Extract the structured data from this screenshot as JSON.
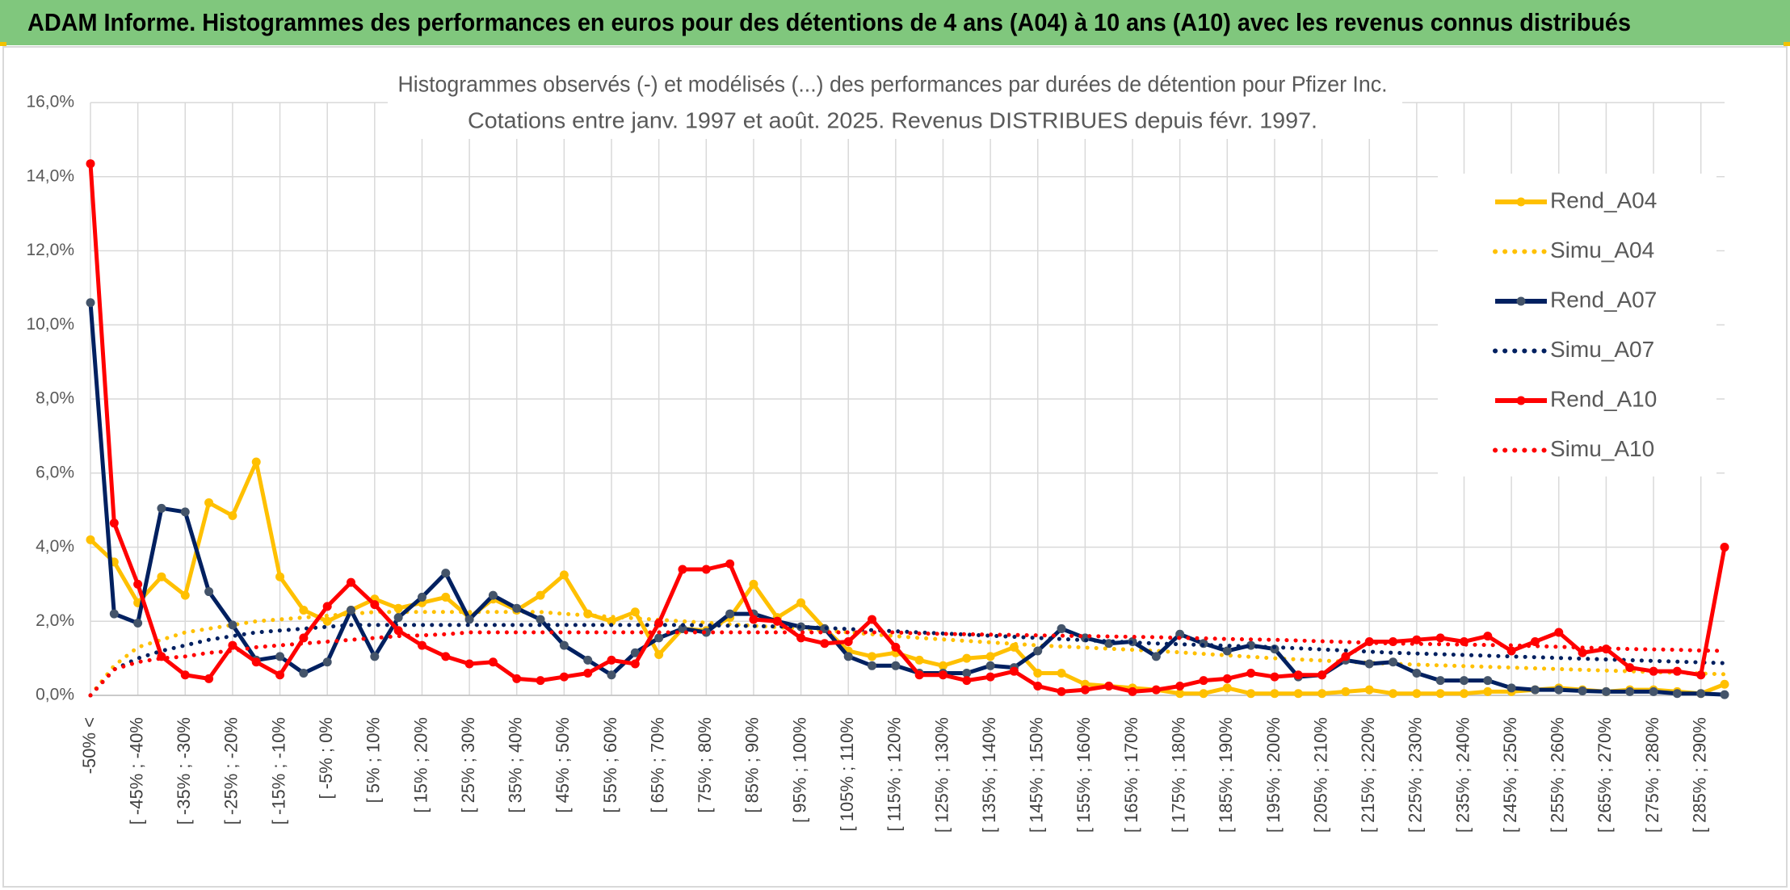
{
  "header": {
    "title": "ADAM Informe. Histogrammes des performances en euros pour des détentions de 4 ans (A04) à 10 ans (A10) avec les revenus connus distribués"
  },
  "chart_data": {
    "type": "line",
    "title": "Histogrammes observés (-) et modélisés (...) des performances par durées de détention pour Pfizer Inc.",
    "subtitle": "Cotations entre janv. 1997 et août. 2025. Revenus DISTRIBUES depuis févr. 1997.",
    "categories": [
      "-50% <",
      null,
      "[ -45% ; -40%",
      null,
      "[ -35% ; -30%",
      null,
      "[ -25% ; -20%",
      null,
      "[ -15% ; -10%",
      null,
      "[ -5% ; 0%",
      null,
      "[ 5% ; 10%",
      null,
      "[ 15% ; 20%",
      null,
      "[ 25% ; 30%",
      null,
      "[ 35% ; 40%",
      null,
      "[ 45% ; 50%",
      null,
      "[ 55% ; 60%",
      null,
      "[ 65% ; 70%",
      null,
      "[ 75% ; 80%",
      null,
      "[ 85% ; 90%",
      null,
      "[ 95% ; 100%",
      null,
      "[ 105% ; 110%",
      null,
      "[ 115% ; 120%",
      null,
      "[ 125% ; 130%",
      null,
      "[ 135% ; 140%",
      null,
      "[ 145% ; 150%",
      null,
      "[ 155% ; 160%",
      null,
      "[ 165% ; 170%",
      null,
      "[ 175% ; 180%",
      null,
      "[ 185% ; 190%",
      null,
      "[ 195% ; 200%",
      null,
      "[ 205% ; 210%",
      null,
      "[ 215% ; 220%",
      null,
      "[ 225% ; 230%",
      null,
      "[ 235% ; 240%",
      null,
      "[ 245% ; 250%",
      null,
      "[ 255% ; 260%",
      null,
      "[ 265% ; 270%",
      null,
      "[ 275% ; 280%",
      null,
      "[ 285% ; 290%",
      null
    ],
    "ylim": [
      0,
      16
    ],
    "yticks": [
      {
        "value": 0,
        "label": "0,0%"
      },
      {
        "value": 2,
        "label": "2,0%"
      },
      {
        "value": 4,
        "label": "4,0%"
      },
      {
        "value": 6,
        "label": "6,0%"
      },
      {
        "value": 8,
        "label": "8,0%"
      },
      {
        "value": 10,
        "label": "10,0%"
      },
      {
        "value": 12,
        "label": "12,0%"
      },
      {
        "value": 14,
        "label": "14,0%"
      },
      {
        "value": 16,
        "label": "16,0%"
      }
    ],
    "grid": true,
    "legend": "right",
    "series": [
      {
        "name": "Rend_A04",
        "color": "#ffc000",
        "style": "solid",
        "markers": true,
        "values": [
          4.2,
          3.6,
          2.5,
          3.2,
          2.7,
          5.2,
          4.85,
          6.3,
          3.2,
          2.3,
          2.0,
          2.3,
          2.6,
          2.35,
          2.5,
          2.65,
          2.1,
          2.6,
          2.3,
          2.7,
          3.25,
          2.2,
          2.0,
          2.25,
          1.1,
          1.8,
          1.75,
          2.1,
          3.0,
          2.1,
          2.5,
          1.8,
          1.2,
          1.05,
          1.15,
          0.95,
          0.8,
          1.0,
          1.05,
          1.3,
          0.6,
          0.6,
          0.3,
          0.25,
          0.2,
          0.15,
          0.05,
          0.05,
          0.2,
          0.05,
          0.05,
          0.05,
          0.05,
          0.1,
          0.15,
          0.05,
          0.05,
          0.05,
          0.05,
          0.1,
          0.1,
          0.15,
          0.2,
          0.15,
          0.1,
          0.15,
          0.15,
          0.1,
          0.05,
          0.3
        ]
      },
      {
        "name": "Simu_A04",
        "color": "#ffc000",
        "style": "dotted",
        "markers": false,
        "values": [
          0,
          0.8,
          1.3,
          1.5,
          1.7,
          1.8,
          1.9,
          2.0,
          2.05,
          2.1,
          2.15,
          2.2,
          2.25,
          2.25,
          2.25,
          2.25,
          2.25,
          2.25,
          2.25,
          2.25,
          2.2,
          2.16,
          2.12,
          2.08,
          2.04,
          2.0,
          1.96,
          1.92,
          1.88,
          1.84,
          1.8,
          1.75,
          1.7,
          1.65,
          1.6,
          1.55,
          1.51,
          1.47,
          1.43,
          1.39,
          1.35,
          1.32,
          1.29,
          1.26,
          1.23,
          1.2,
          1.16,
          1.12,
          1.08,
          1.04,
          1.0,
          0.97,
          0.94,
          0.91,
          0.88,
          0.85,
          0.83,
          0.81,
          0.79,
          0.77,
          0.75,
          0.73,
          0.71,
          0.69,
          0.67,
          0.65,
          0.63,
          0.61,
          0.59,
          0.57
        ]
      },
      {
        "name": "Rend_A07",
        "color": "#002060",
        "marker_color": "#44546a",
        "style": "solid",
        "markers": true,
        "values": [
          10.6,
          2.2,
          1.95,
          5.05,
          4.95,
          2.8,
          1.9,
          0.95,
          1.05,
          0.6,
          0.9,
          2.3,
          1.05,
          2.1,
          2.65,
          3.3,
          2.05,
          2.7,
          2.35,
          2.05,
          1.35,
          0.95,
          0.55,
          1.15,
          1.55,
          1.8,
          1.7,
          2.2,
          2.2,
          2.0,
          1.85,
          1.8,
          1.05,
          0.8,
          0.8,
          0.6,
          0.6,
          0.6,
          0.8,
          0.75,
          1.2,
          1.8,
          1.55,
          1.4,
          1.45,
          1.05,
          1.65,
          1.4,
          1.2,
          1.35,
          1.25,
          0.5,
          0.55,
          0.95,
          0.85,
          0.9,
          0.6,
          0.4,
          0.4,
          0.4,
          0.2,
          0.15,
          0.15,
          0.12,
          0.1,
          0.1,
          0.1,
          0.05,
          0.05,
          0.02
        ]
      },
      {
        "name": "Simu_A07",
        "color": "#002060",
        "style": "dotted",
        "markers": false,
        "values": [
          0,
          0.7,
          1.0,
          1.2,
          1.35,
          1.5,
          1.6,
          1.7,
          1.75,
          1.8,
          1.85,
          1.9,
          1.9,
          1.9,
          1.9,
          1.9,
          1.9,
          1.9,
          1.9,
          1.9,
          1.9,
          1.9,
          1.9,
          1.9,
          1.9,
          1.9,
          1.89,
          1.88,
          1.87,
          1.86,
          1.85,
          1.82,
          1.79,
          1.76,
          1.73,
          1.7,
          1.67,
          1.64,
          1.61,
          1.58,
          1.55,
          1.52,
          1.49,
          1.46,
          1.43,
          1.4,
          1.38,
          1.36,
          1.34,
          1.32,
          1.3,
          1.27,
          1.24,
          1.21,
          1.18,
          1.15,
          1.13,
          1.11,
          1.09,
          1.07,
          1.05,
          1.03,
          1.01,
          0.99,
          0.97,
          0.95,
          0.93,
          0.91,
          0.89,
          0.87
        ]
      },
      {
        "name": "Rend_A10",
        "color": "#ff0000",
        "style": "solid",
        "markers": true,
        "values": [
          14.35,
          4.65,
          3.0,
          1.05,
          0.55,
          0.45,
          1.35,
          0.9,
          0.55,
          1.55,
          2.4,
          3.05,
          2.45,
          1.75,
          1.35,
          1.05,
          0.85,
          0.9,
          0.45,
          0.4,
          0.5,
          0.6,
          0.95,
          0.85,
          1.95,
          3.4,
          3.4,
          3.55,
          2.05,
          2.0,
          1.55,
          1.4,
          1.45,
          2.05,
          1.3,
          0.55,
          0.55,
          0.4,
          0.5,
          0.65,
          0.25,
          0.1,
          0.15,
          0.25,
          0.1,
          0.15,
          0.25,
          0.4,
          0.45,
          0.6,
          0.5,
          0.55,
          0.55,
          1.05,
          1.45,
          1.45,
          1.5,
          1.55,
          1.45,
          1.6,
          1.2,
          1.45,
          1.7,
          1.15,
          1.25,
          0.75,
          0.65,
          0.65,
          0.55,
          4.0
        ]
      },
      {
        "name": "Simu_A10",
        "color": "#ff0000",
        "style": "dotted",
        "markers": false,
        "values": [
          0,
          0.7,
          0.9,
          1.0,
          1.05,
          1.15,
          1.2,
          1.3,
          1.35,
          1.4,
          1.45,
          1.5,
          1.55,
          1.6,
          1.62,
          1.65,
          1.7,
          1.7,
          1.7,
          1.7,
          1.7,
          1.7,
          1.7,
          1.7,
          1.7,
          1.7,
          1.7,
          1.7,
          1.7,
          1.7,
          1.7,
          1.7,
          1.7,
          1.7,
          1.7,
          1.67,
          1.66,
          1.65,
          1.64,
          1.63,
          1.62,
          1.61,
          1.6,
          1.59,
          1.58,
          1.57,
          1.55,
          1.54,
          1.52,
          1.51,
          1.5,
          1.48,
          1.46,
          1.44,
          1.42,
          1.4,
          1.39,
          1.38,
          1.37,
          1.36,
          1.35,
          1.33,
          1.31,
          1.29,
          1.27,
          1.25,
          1.24,
          1.23,
          1.21,
          1.2
        ]
      }
    ]
  }
}
